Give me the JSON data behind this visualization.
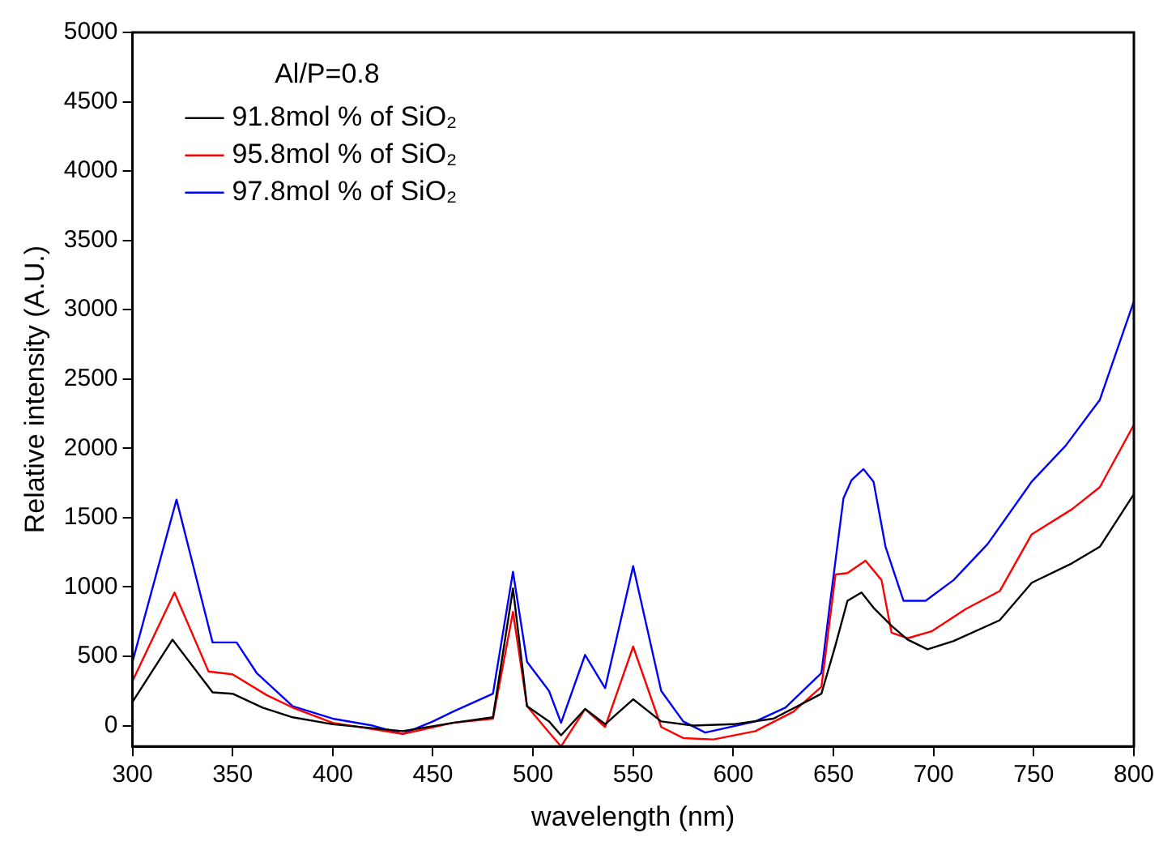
{
  "chart_data": {
    "type": "line",
    "xlabel": "wavelength (nm)",
    "ylabel": "Relative intensity (A.U.)",
    "legend_title": "Al/P=0.8",
    "legend": "top left",
    "grid": false,
    "marker": "none",
    "line_style": "solid",
    "xlim": [
      300,
      800
    ],
    "ylim": [
      -150,
      5000
    ],
    "xticks": [
      300,
      350,
      400,
      450,
      500,
      550,
      600,
      650,
      700,
      750,
      800
    ],
    "yticks": [
      0,
      500,
      1000,
      1500,
      2000,
      2500,
      3000,
      3500,
      4000,
      4500,
      5000
    ],
    "series": [
      {
        "name": "91.8mol % of SiO₂",
        "color": "#000000",
        "x": [
          300,
          320,
          340,
          350,
          365,
          380,
          400,
          435,
          460,
          480,
          490,
          497,
          508,
          514,
          526,
          536,
          550,
          564,
          580,
          600,
          620,
          640,
          644,
          651,
          657,
          664,
          670,
          679,
          687,
          697,
          710,
          733,
          749,
          769,
          783,
          800
        ],
        "values": [
          170,
          620,
          240,
          230,
          130,
          60,
          10,
          -40,
          20,
          60,
          990,
          140,
          30,
          -70,
          120,
          10,
          190,
          30,
          0,
          10,
          50,
          200,
          230,
          580,
          900,
          960,
          850,
          720,
          620,
          550,
          610,
          760,
          1030,
          1170,
          1290,
          1670
        ]
      },
      {
        "name": "95.8mol % of SiO₂",
        "color": "#ff0000",
        "x": [
          300,
          321,
          338,
          350,
          367,
          380,
          400,
          435,
          460,
          480,
          490,
          497,
          508,
          514,
          526,
          536,
          550,
          564,
          575,
          590,
          611,
          630,
          644,
          651,
          657,
          666,
          674,
          679,
          687,
          699,
          716,
          733,
          749,
          769,
          783,
          800
        ],
        "values": [
          320,
          960,
          390,
          370,
          220,
          130,
          20,
          -60,
          20,
          50,
          820,
          140,
          -50,
          -150,
          120,
          -10,
          570,
          -10,
          -90,
          -100,
          -40,
          100,
          280,
          1090,
          1100,
          1190,
          1050,
          670,
          630,
          680,
          840,
          970,
          1380,
          1560,
          1720,
          2170
        ]
      },
      {
        "name": "97.8mol % of SiO₂",
        "color": "#0000ff",
        "x": [
          300,
          322,
          340,
          352,
          362,
          380,
          400,
          420,
          435,
          450,
          460,
          480,
          490,
          497,
          508,
          514,
          526,
          536,
          550,
          564,
          575,
          586,
          611,
          626,
          644,
          648,
          655,
          659,
          665,
          670,
          676,
          685,
          696,
          710,
          727,
          749,
          766,
          783,
          800
        ],
        "values": [
          460,
          1630,
          600,
          600,
          380,
          140,
          50,
          0,
          -60,
          30,
          100,
          230,
          1110,
          460,
          250,
          20,
          510,
          270,
          1150,
          250,
          30,
          -50,
          30,
          130,
          380,
          850,
          1640,
          1770,
          1850,
          1760,
          1290,
          900,
          900,
          1050,
          1310,
          1760,
          2020,
          2350,
          3060
        ]
      }
    ]
  }
}
